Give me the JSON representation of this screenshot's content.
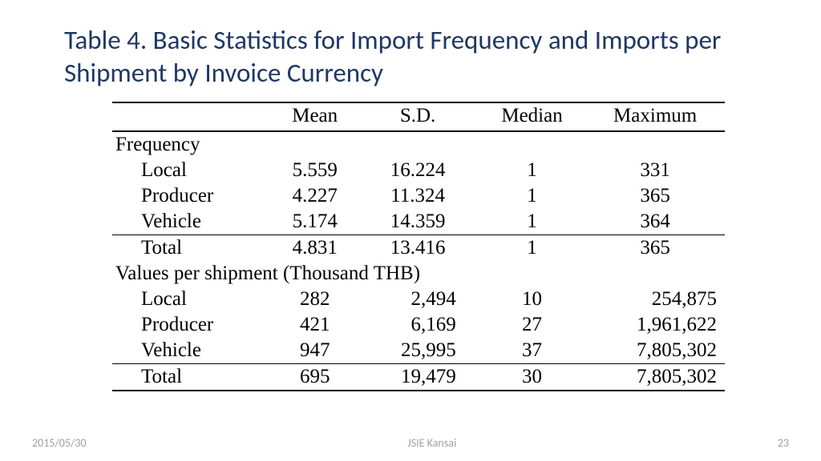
{
  "title": "Table 4. Basic Statistics for Import Frequency and Imports per Shipment by Invoice Currency",
  "table": {
    "columns": [
      "Mean",
      "S.D.",
      "Median",
      "Maximum"
    ],
    "sections": [
      {
        "header": "Frequency",
        "rows": [
          {
            "label": "Local",
            "mean": "5.559",
            "sd": "16.224",
            "median": "1",
            "max": "331"
          },
          {
            "label": "Producer",
            "mean": "4.227",
            "sd": "11.324",
            "median": "1",
            "max": "365"
          },
          {
            "label": "Vehicle",
            "mean": "5.174",
            "sd": "14.359",
            "median": "1",
            "max": "364"
          }
        ],
        "total": {
          "label": "Total",
          "mean": "4.831",
          "sd": "13.416",
          "median": "1",
          "max": "365"
        }
      },
      {
        "header": "Values per shipment (Thousand THB)",
        "rows": [
          {
            "label": "Local",
            "mean": "282",
            "sd": "2,494",
            "median": "10",
            "max": "254,875"
          },
          {
            "label": "Producer",
            "mean": "421",
            "sd": "6,169",
            "median": "27",
            "max": "1,961,622"
          },
          {
            "label": "Vehicle",
            "mean": "947",
            "sd": "25,995",
            "median": "37",
            "max": "7,805,302"
          }
        ],
        "total": {
          "label": "Total",
          "mean": "695",
          "sd": "19,479",
          "median": "30",
          "max": "7,805,302"
        }
      }
    ]
  },
  "footer": {
    "date": "2015/05/30",
    "center": "JSIE Kansai",
    "page": "23"
  },
  "style": {
    "title_color": "#1f3864",
    "title_fontsize": 33,
    "table_font": "Times New Roman",
    "table_fontsize": 25,
    "border_color": "#000000",
    "background": "#ffffff",
    "footer_color": "#a0a0a0",
    "footer_fontsize": 14
  }
}
